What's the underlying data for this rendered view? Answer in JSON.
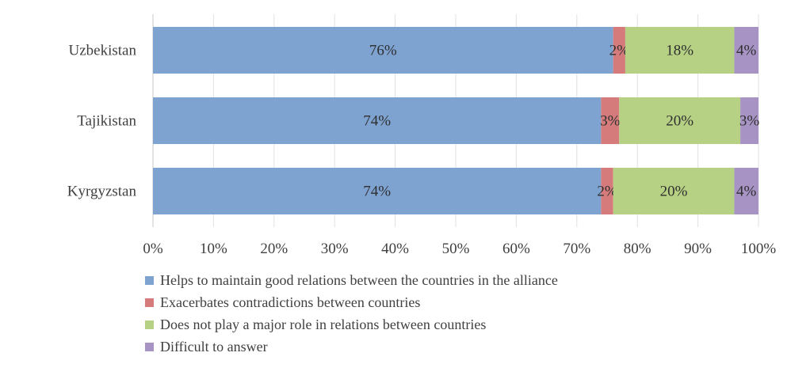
{
  "chart_data": {
    "type": "bar",
    "orientation": "horizontal",
    "stacked": true,
    "categories": [
      "Uzbekistan",
      "Tajikistan",
      "Kyrgyzstan"
    ],
    "series": [
      {
        "name": "Helps to maintain good relations between the countries in the alliance",
        "color": "#7ea3d1",
        "values": [
          76,
          74,
          74
        ],
        "labels": [
          "76%",
          "74%",
          "74%"
        ]
      },
      {
        "name": "Exacerbates contradictions between countries",
        "color": "#d57b7b",
        "values": [
          2,
          3,
          2
        ],
        "labels": [
          "2%",
          "3%",
          "2%"
        ]
      },
      {
        "name": "Does not play a major role in relations between countries",
        "color": "#b6d184",
        "values": [
          18,
          20,
          20
        ],
        "labels": [
          "18%",
          "20%",
          "20%"
        ]
      },
      {
        "name": "Difficult to answer",
        "color": "#a793c4",
        "values": [
          4,
          3,
          4
        ],
        "labels": [
          "4%",
          "3%",
          "4%"
        ]
      }
    ],
    "xlim": [
      0,
      100
    ],
    "xticks": [
      "0%",
      "10%",
      "20%",
      "30%",
      "40%",
      "50%",
      "60%",
      "70%",
      "80%",
      "90%",
      "100%"
    ],
    "grid": true,
    "legend_position": "bottom"
  }
}
